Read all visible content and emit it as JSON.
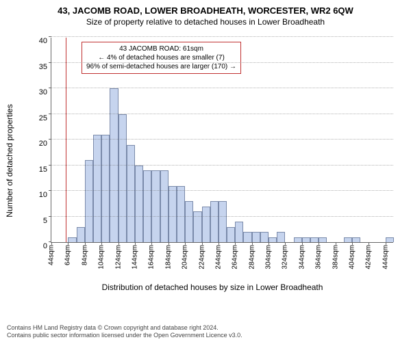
{
  "title_main": "43, JACOMB ROAD, LOWER BROADHEATH, WORCESTER, WR2 6QW",
  "title_sub": "Size of property relative to detached houses in Lower Broadheath",
  "ylabel": "Number of detached properties",
  "xlabel": "Distribution of detached houses by size in Lower Broadheath",
  "chart": {
    "type": "histogram",
    "ylim": [
      0,
      40
    ],
    "ytick_step": 5,
    "yticks": [
      0,
      5,
      10,
      15,
      20,
      25,
      30,
      35,
      40
    ],
    "xtick_labels": [
      "44sqm",
      "64sqm",
      "84sqm",
      "104sqm",
      "124sqm",
      "144sqm",
      "164sqm",
      "184sqm",
      "204sqm",
      "224sqm",
      "244sqm",
      "264sqm",
      "284sqm",
      "304sqm",
      "324sqm",
      "344sqm",
      "364sqm",
      "384sqm",
      "404sqm",
      "424sqm",
      "444sqm"
    ],
    "xtick_step": 20,
    "xrange": [
      44,
      454
    ],
    "bin_width": 10,
    "values": [
      0,
      0,
      1,
      3,
      16,
      21,
      21,
      30,
      25,
      19,
      15,
      14,
      14,
      14,
      11,
      11,
      8,
      6,
      7,
      8,
      8,
      3,
      4,
      2,
      2,
      2,
      1,
      2,
      0,
      1,
      1,
      1,
      1,
      0,
      0,
      1,
      1,
      0,
      0,
      0,
      1
    ],
    "bar_fill": "#c6d4ee",
    "bar_stroke": "#7a8aaa",
    "grid_color": "#666666",
    "background_color": "#ffffff",
    "reference_line_x": 61,
    "reference_line_color": "#c03030"
  },
  "info_box": {
    "lines": [
      "43 JACOMB ROAD: 61sqm",
      "← 4% of detached houses are smaller (7)",
      "96% of semi-detached houses are larger (170) →"
    ],
    "border_color": "#c03030",
    "text_color": "#000000",
    "fontsize": 10
  },
  "footer": {
    "line1": "Contains HM Land Registry data © Crown copyright and database right 2024.",
    "line2": "Contains public sector information licensed under the Open Government Licence v3.0."
  },
  "fonts": {
    "title_main_fontsize": 13,
    "title_sub_fontsize": 12,
    "axis_label_fontsize": 12,
    "tick_fontsize": 11,
    "xtick_fontsize": 10,
    "footer_fontsize": 9
  }
}
